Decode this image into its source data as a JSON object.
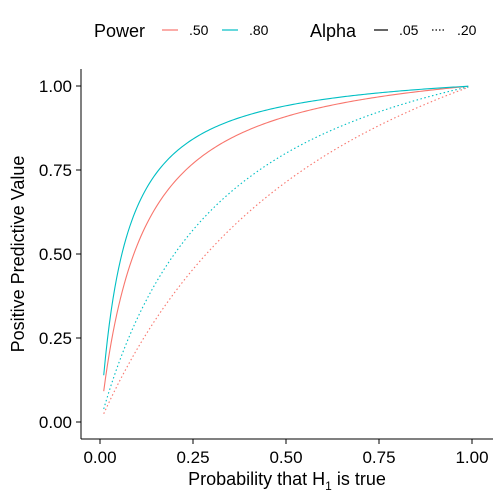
{
  "chart_data": {
    "type": "line",
    "xlabel": "Probability that H",
    "xlabel_subscript": "1",
    "xlabel_suffix": " is true",
    "ylabel": "Positive Predictive Value",
    "xlim": [
      0,
      1
    ],
    "ylim": [
      0,
      1
    ],
    "x_ticks": [
      0,
      0.25,
      0.5,
      0.75,
      1
    ],
    "y_ticks": [
      0,
      0.25,
      0.5,
      0.75,
      1
    ],
    "x_tick_labels": [
      "0.00",
      "0.25",
      "0.50",
      "0.75",
      "1.00"
    ],
    "y_tick_labels": [
      "0.00",
      "0.25",
      "0.50",
      "0.75",
      "1.00"
    ],
    "grid": false,
    "legend_position": "top",
    "legend": {
      "color_title": "Power",
      "color_entries": [
        {
          "label": ".50",
          "color": "#F8766D"
        },
        {
          "label": ".80",
          "color": "#00BFC4"
        }
      ],
      "linetype_title": "Alpha",
      "linetype_entries": [
        {
          "label": ".05",
          "linetype": "solid"
        },
        {
          "label": ".20",
          "linetype": "dotted"
        }
      ]
    },
    "series": [
      {
        "power": 0.5,
        "alpha": 0.05,
        "color": "#F8766D",
        "linetype": "solid",
        "x": [
          0.01,
          0.05,
          0.1,
          0.15,
          0.2,
          0.25,
          0.3,
          0.4,
          0.5,
          0.6,
          0.7,
          0.8,
          0.9,
          0.99
        ],
        "y": [
          0.092,
          0.345,
          0.526,
          0.638,
          0.714,
          0.769,
          0.811,
          0.87,
          0.909,
          0.938,
          0.959,
          0.976,
          0.989,
          0.999
        ]
      },
      {
        "power": 0.8,
        "alpha": 0.05,
        "color": "#00BFC4",
        "linetype": "solid",
        "x": [
          0.01,
          0.05,
          0.1,
          0.15,
          0.2,
          0.25,
          0.3,
          0.4,
          0.5,
          0.6,
          0.7,
          0.8,
          0.9,
          0.99
        ],
        "y": [
          0.139,
          0.457,
          0.64,
          0.738,
          0.8,
          0.842,
          0.873,
          0.914,
          0.941,
          0.96,
          0.974,
          0.985,
          0.993,
          0.999
        ]
      },
      {
        "power": 0.5,
        "alpha": 0.2,
        "color": "#F8766D",
        "linetype": "dotted",
        "x": [
          0.01,
          0.05,
          0.1,
          0.15,
          0.2,
          0.25,
          0.3,
          0.4,
          0.5,
          0.6,
          0.7,
          0.8,
          0.9,
          0.99
        ],
        "y": [
          0.025,
          0.116,
          0.217,
          0.306,
          0.385,
          0.455,
          0.517,
          0.625,
          0.714,
          0.789,
          0.854,
          0.909,
          0.957,
          0.996
        ]
      },
      {
        "power": 0.8,
        "alpha": 0.2,
        "color": "#00BFC4",
        "linetype": "dotted",
        "x": [
          0.01,
          0.05,
          0.1,
          0.15,
          0.2,
          0.25,
          0.3,
          0.4,
          0.5,
          0.6,
          0.7,
          0.8,
          0.9,
          0.99
        ],
        "y": [
          0.039,
          0.174,
          0.308,
          0.414,
          0.5,
          0.571,
          0.632,
          0.727,
          0.8,
          0.857,
          0.903,
          0.941,
          0.973,
          0.997
        ]
      }
    ]
  }
}
